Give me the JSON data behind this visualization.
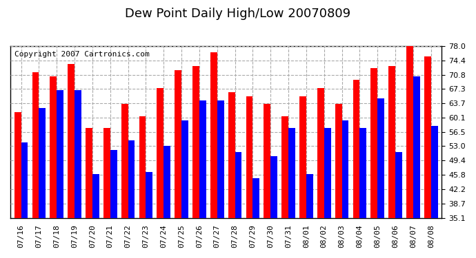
{
  "title": "Dew Point Daily High/Low 20070809",
  "copyright": "Copyright 2007 Cartronics.com",
  "dates": [
    "07/16",
    "07/17",
    "07/18",
    "07/19",
    "07/20",
    "07/21",
    "07/22",
    "07/23",
    "07/24",
    "07/25",
    "07/26",
    "07/27",
    "07/28",
    "07/29",
    "07/30",
    "07/31",
    "08/01",
    "08/02",
    "08/03",
    "08/04",
    "08/05",
    "08/06",
    "08/07",
    "08/08"
  ],
  "high": [
    61.5,
    71.5,
    70.5,
    73.5,
    57.5,
    57.5,
    63.5,
    60.5,
    67.5,
    72.0,
    73.0,
    76.5,
    66.5,
    65.5,
    63.5,
    60.5,
    65.5,
    67.5,
    63.5,
    69.5,
    72.5,
    73.0,
    78.0,
    75.5
  ],
  "low": [
    54.0,
    62.5,
    67.0,
    67.0,
    46.0,
    52.0,
    54.5,
    46.5,
    53.0,
    59.5,
    64.5,
    64.5,
    51.5,
    45.0,
    50.5,
    57.5,
    46.0,
    57.5,
    59.5,
    57.5,
    65.0,
    51.5,
    70.5,
    58.0
  ],
  "ylim": [
    35.1,
    78.0
  ],
  "yticks": [
    35.1,
    38.7,
    42.2,
    45.8,
    49.4,
    53.0,
    56.5,
    60.1,
    63.7,
    67.3,
    70.8,
    74.4,
    78.0
  ],
  "bar_width": 0.38,
  "high_color": "#FF0000",
  "low_color": "#0000FF",
  "bg_color": "#FFFFFF",
  "plot_bg_color": "#FFFFFF",
  "grid_color": "#AAAAAA",
  "title_fontsize": 13,
  "copyright_fontsize": 8,
  "tick_fontsize": 8,
  "xlabel_rotation": 90
}
